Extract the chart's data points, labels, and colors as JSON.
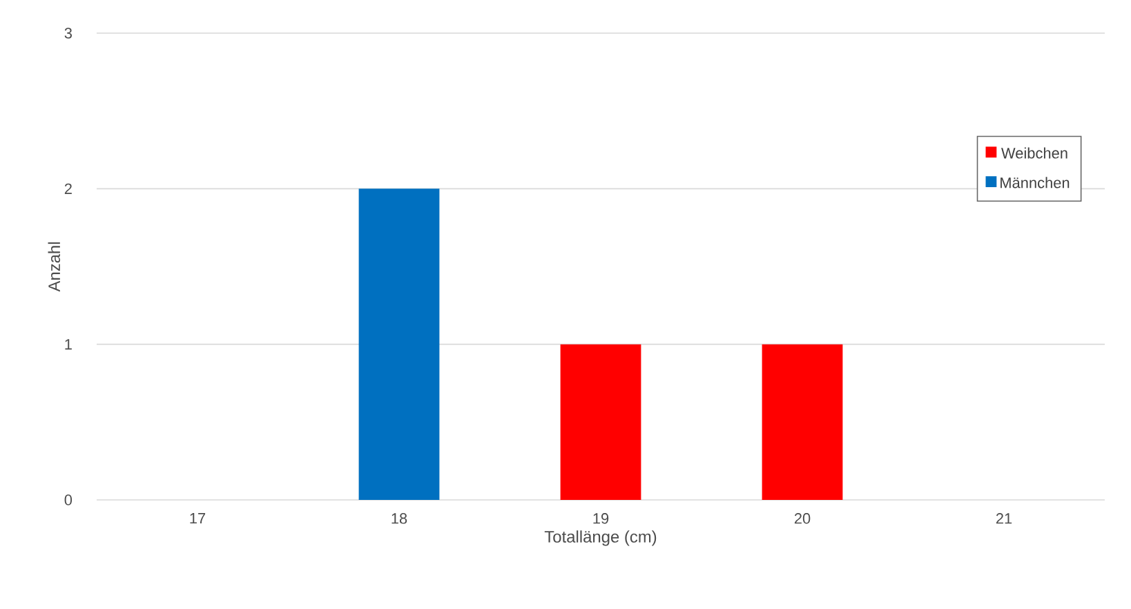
{
  "chart_data": {
    "type": "bar",
    "xlabel": "Totallänge (cm)",
    "ylabel": "Anzahl",
    "categories": [
      "17",
      "18",
      "19",
      "20",
      "21"
    ],
    "series": [
      {
        "name": "Weibchen",
        "color": "#ff0000",
        "values": [
          0,
          0,
          1,
          1,
          0
        ]
      },
      {
        "name": "Männchen",
        "color": "#0070c0",
        "values": [
          0,
          2,
          0,
          0,
          0
        ]
      }
    ],
    "stacked": true,
    "ylim": [
      0,
      3
    ],
    "yticks": [
      0,
      1,
      2,
      3
    ],
    "grid": "y",
    "legend": "right"
  }
}
